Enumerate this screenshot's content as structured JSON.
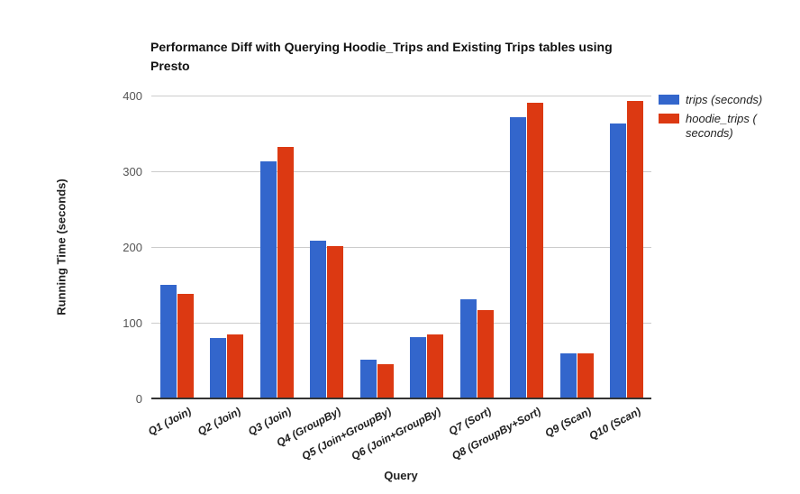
{
  "chart_data": {
    "type": "bar",
    "title": "Performance Diff with Querying Hoodie_Trips and Existing Trips tables using Presto",
    "xlabel": "Query",
    "ylabel": "Running Time (seconds)",
    "ylim": [
      0,
      400
    ],
    "yticks": [
      0,
      100,
      200,
      300,
      400
    ],
    "grid": true,
    "legend_position": "right",
    "categories": [
      "Q1 (Join)",
      "Q2 (Join)",
      "Q3 (Join)",
      "Q4 (GroupBy)",
      "Q5 (Join+GroupBy)",
      "Q6 (Join+GroupBy)",
      "Q7 (Sort)",
      "Q8 (GroupBy+Sort)",
      "Q9 (Scan)",
      "Q10 (Scan)"
    ],
    "series": [
      {
        "name": "trips (seconds)",
        "color": "#3366CC",
        "values": [
          150,
          80,
          313,
          208,
          51,
          81,
          131,
          371,
          60,
          363
        ]
      },
      {
        "name": "hoodie_trips (\nseconds)",
        "color": "#DC3912",
        "values": [
          138,
          84,
          332,
          201,
          45,
          85,
          117,
          390,
          59,
          393
        ]
      }
    ]
  }
}
